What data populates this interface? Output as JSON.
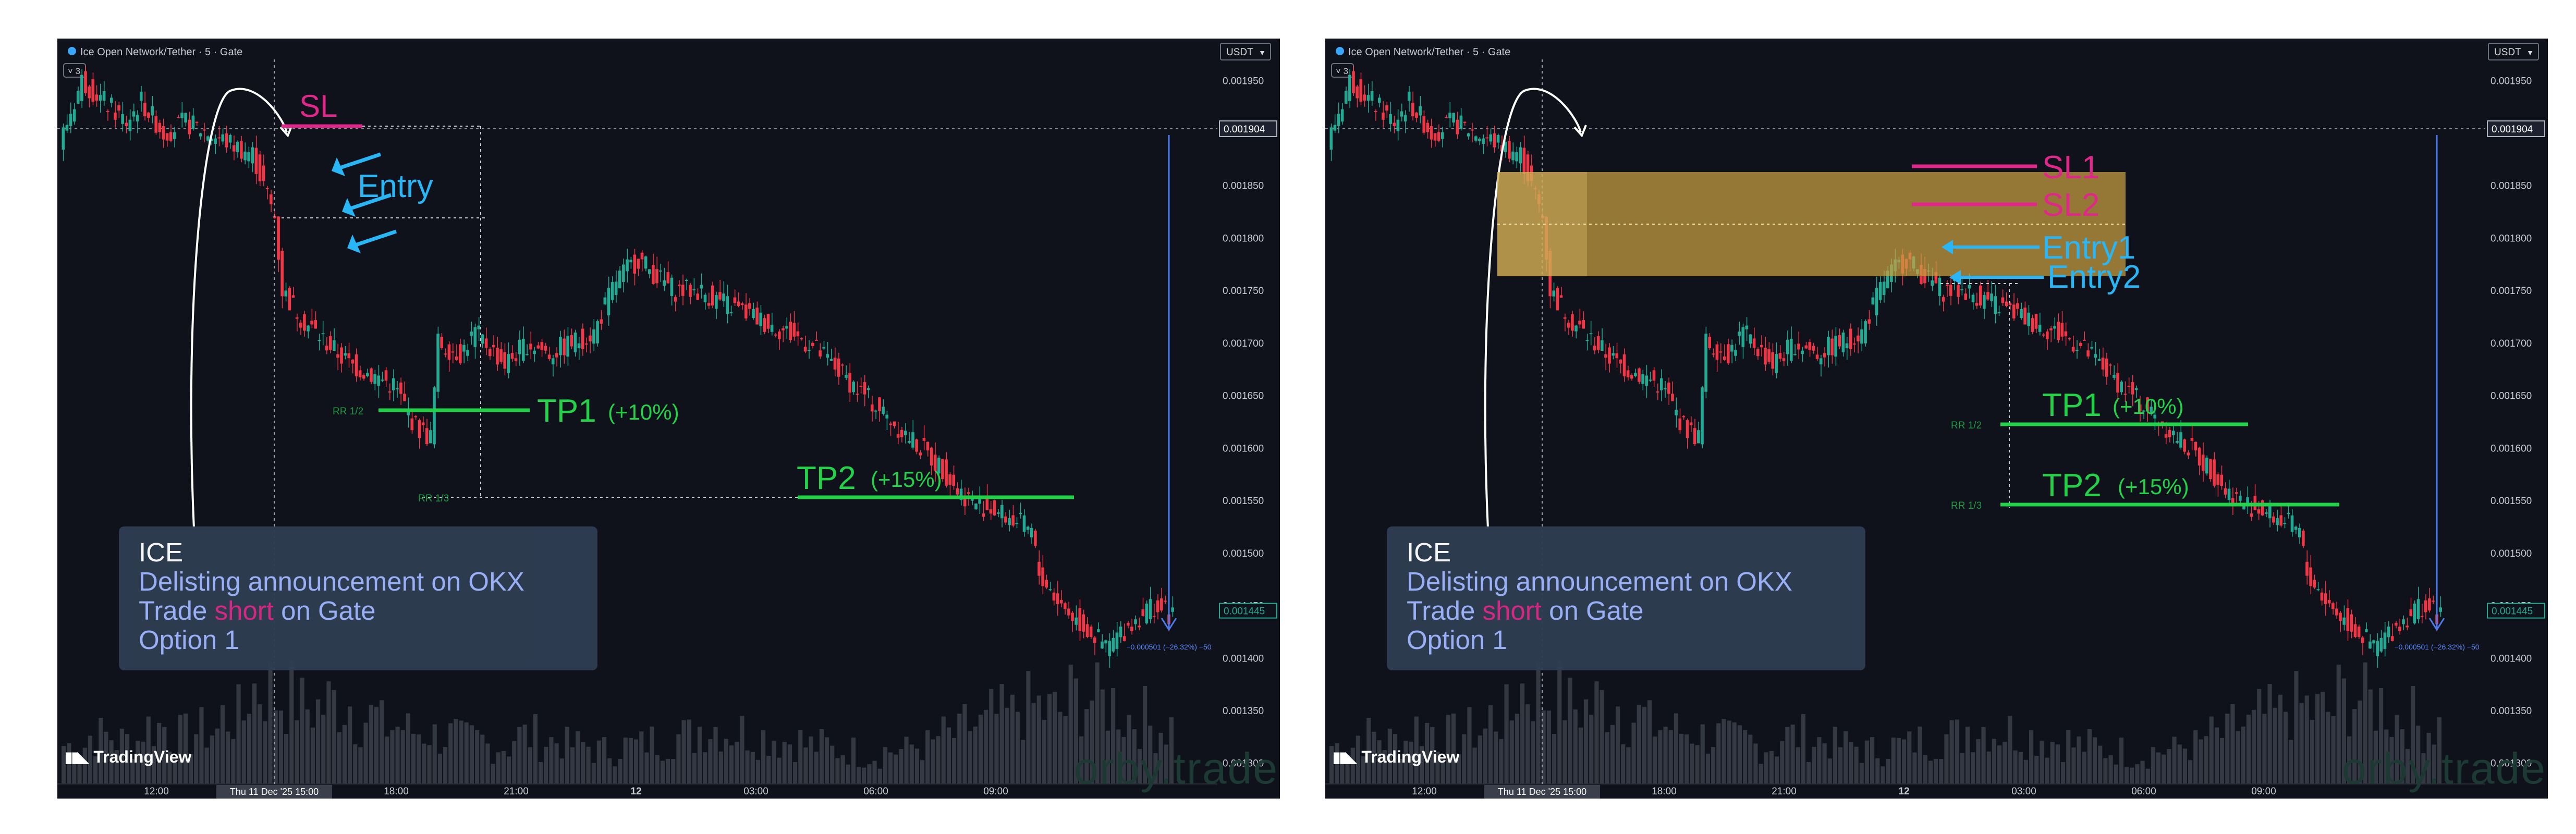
{
  "panels": [
    {
      "symbol": "Ice Open Network/Tether · 5 · Gate",
      "interval_badge": "3",
      "currency": "USDT",
      "price_axis": [
        "0.001950",
        "0.001900",
        "0.001850",
        "0.001800",
        "0.001750",
        "0.001700",
        "0.001650",
        "0.001600",
        "0.001550",
        "0.001500",
        "0.001450",
        "0.001400",
        "0.001350",
        "0.001300"
      ],
      "current_price_label": "0.001904",
      "last_price_label": "0.001445",
      "time_axis": [
        "12:00",
        "18:00",
        "21:00",
        "12",
        "03:00",
        "06:00",
        "09:00"
      ],
      "time_highlight": "Thu 11 Dec '25  15:00",
      "measure_label": "−0.000501 (−26.32%) −50",
      "rr_labels": [
        "RR 1/2",
        "RR 1/3"
      ],
      "annotations": {
        "sl": "SL",
        "entry": "Entry",
        "tp1": "TP1",
        "tp1_pct": "(+10%)",
        "tp2": "TP2",
        "tp2_pct": "(+15%)"
      },
      "info": {
        "title": "ICE",
        "line1": "Delisting announcement on OKX",
        "line2_pre": "Trade ",
        "line2_hi": "short",
        "line2_post": " on Gate",
        "line3": "Option 1"
      },
      "brand": "TradingView",
      "watermark": "orby.trade"
    },
    {
      "symbol": "Ice Open Network/Tether · 5 · Gate",
      "interval_badge": "3",
      "currency": "USDT",
      "price_axis": [
        "0.001950",
        "0.001900",
        "0.001850",
        "0.001800",
        "0.001750",
        "0.001700",
        "0.001650",
        "0.001600",
        "0.001550",
        "0.001500",
        "0.001450",
        "0.001400",
        "0.001350",
        "0.001300"
      ],
      "current_price_label": "0.001904",
      "last_price_label": "0.001445",
      "time_axis": [
        "12:00",
        "18:00",
        "21:00",
        "12",
        "03:00",
        "06:00",
        "09:00"
      ],
      "time_highlight": "Thu 11 Dec '25  15:00",
      "measure_label": "−0.000501 (−26.32%) −50",
      "rr_labels": [
        "RR 1/2",
        "RR 1/3"
      ],
      "annotations": {
        "sl1": "SL1",
        "sl2": "SL2",
        "entry1": "Entry1",
        "entry2": "Entry2",
        "tp1": "TP1",
        "tp1_pct": "(+10%)",
        "tp2": "TP2",
        "tp2_pct": "(+15%)"
      },
      "info": {
        "title": "ICE",
        "line1": "Delisting announcement on OKX",
        "line2_pre": "Trade ",
        "line2_hi": "short",
        "line2_post": " on Gate",
        "line3": "Option 1"
      },
      "brand": "TradingView",
      "watermark": "orby.trade"
    }
  ],
  "chart_data": {
    "type": "line",
    "series": [
      {
        "x": [
          0,
          6,
          12,
          18,
          22,
          28,
          34,
          40,
          46,
          52,
          56,
          58,
          60,
          66,
          72,
          78,
          84,
          90,
          96,
          100,
          102,
          108,
          112,
          120,
          126,
          132,
          138,
          144,
          150,
          156,
          162,
          166,
          172,
          178,
          184,
          190,
          196,
          202,
          208,
          214,
          220,
          226,
          232,
          238,
          242,
          246,
          252,
          258,
          262,
          264,
          270,
          276,
          282,
          288,
          294,
          300
        ],
        "values": [
          0.00189,
          0.00195,
          0.00193,
          0.00191,
          0.00193,
          0.0019,
          0.00191,
          0.0019,
          0.00189,
          0.00188,
          0.00184,
          0.00182,
          0.00175,
          0.00172,
          0.0017,
          0.00168,
          0.00167,
          0.00166,
          0.00162,
          0.00161,
          0.0017,
          0.00169,
          0.00171,
          0.00168,
          0.0017,
          0.00169,
          0.0017,
          0.00171,
          0.00176,
          0.00178,
          0.00176,
          0.00175,
          0.00175,
          0.00174,
          0.00173,
          0.00172,
          0.00171,
          0.0017,
          0.00168,
          0.00166,
          0.00164,
          0.00162,
          0.0016,
          0.00158,
          0.00156,
          0.00155,
          0.00154,
          0.00153,
          0.00152,
          0.00148,
          0.00145,
          0.00143,
          0.00141,
          0.00143,
          0.00145,
          0.00144
        ]
      }
    ],
    "volume": [
      0.4,
      0.5,
      0.45,
      0.6,
      0.5,
      0.55,
      0.7,
      1.0,
      0.9,
      0.8,
      0.85,
      0.7,
      0.6,
      0.55,
      0.5,
      0.45,
      0.4,
      0.5,
      0.45,
      0.4,
      0.35,
      0.4,
      0.45,
      0.5,
      0.6,
      0.55,
      0.5,
      0.45,
      0.4,
      0.35,
      0.3,
      0.35,
      0.4,
      0.5,
      0.6,
      0.7,
      0.8,
      0.75,
      0.9,
      0.85,
      0.7,
      0.6
    ],
    "ylim": [
      0.00128,
      0.00197
    ],
    "levels": {
      "option1": {
        "sl": 0.00191,
        "entry": 0.001815,
        "tp1": 0.00162,
        "tp2": 0.00153
      },
      "option2": {
        "sl1": 0.001875,
        "sl2": 0.001835,
        "entry1": 0.00179,
        "entry2": 0.00176,
        "tp1": 0.001608,
        "tp2": 0.001528,
        "zone": [
          0.00176,
          0.001865
        ]
      }
    },
    "colors": {
      "up": "#22ab94",
      "down": "#f23645",
      "sl": "#e0288a",
      "entry": "#29b6f6",
      "tp": "#22d34a",
      "zone": "#c9a040"
    }
  }
}
